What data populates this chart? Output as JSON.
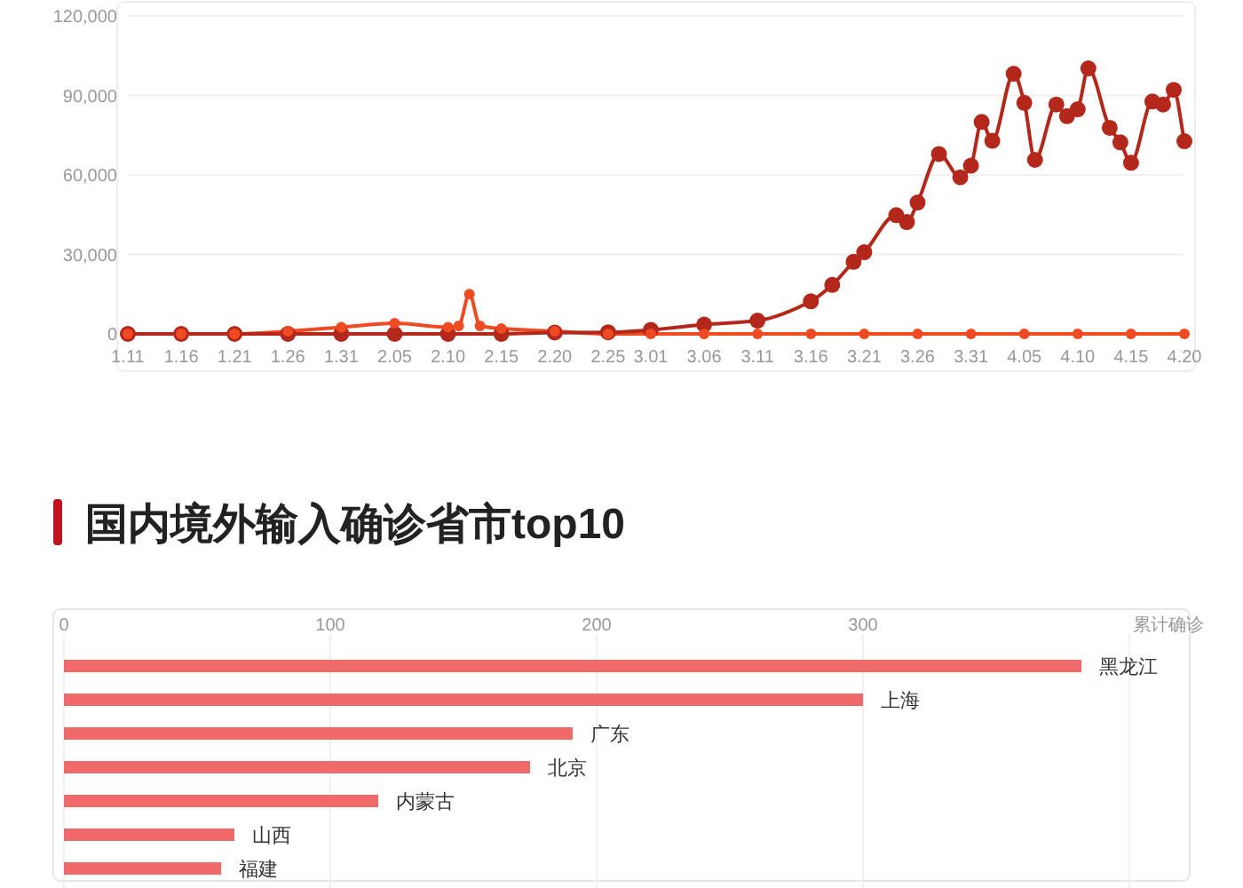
{
  "chart_data": [
    {
      "type": "line",
      "x": [
        "--01-11",
        "--01-16",
        "--01-21",
        "--01-26",
        "--01-31",
        "--02-05",
        "--02-10",
        "--02-15",
        "--02-20",
        "--02-25",
        "--03-01",
        "--03-06",
        "--03-11",
        "--03-16",
        "--03-18",
        "--03-20",
        "--03-21",
        "--03-24",
        "--03-25",
        "--03-26",
        "--03-28",
        "--03-30",
        "--03-31",
        "--04-01",
        "--04-02",
        "--04-04",
        "--04-05",
        "--04-06",
        "--04-08",
        "--04-09",
        "--04-10",
        "--04-11",
        "--04-13",
        "--04-14",
        "--04-15",
        "--04-17",
        "--04-18",
        "--04-19",
        "--04-20"
      ],
      "series": [
        {
          "color": "#b3281a",
          "values": [
            0,
            0,
            0,
            0,
            0,
            0,
            0,
            0,
            500,
            600,
            1500,
            3500,
            5000,
            12300,
            18500,
            27200,
            30800,
            44800,
            42200,
            49600,
            67900,
            59100,
            63500,
            80000,
            72900,
            98200,
            87200,
            65700,
            86600,
            82200,
            84800,
            100200,
            77800,
            72300,
            64600,
            87700,
            86600,
            92100,
            72700
          ]
        },
        {
          "color": "#f04a23",
          "x": [
            "--01-11",
            "--01-16",
            "--01-21",
            "--01-26",
            "--01-31",
            "--02-05",
            "--02-10",
            "--02-11",
            "--02-12",
            "--02-13",
            "--02-15",
            "--02-20",
            "--02-25",
            "--03-01",
            "--03-06",
            "--03-11",
            "--03-16",
            "--03-21",
            "--03-26",
            "--03-31",
            "--04-05",
            "--04-10",
            "--04-15",
            "--04-20"
          ],
          "values": [
            0,
            0,
            0,
            1000,
            2500,
            4000,
            2500,
            3000,
            15000,
            3000,
            2000,
            1000,
            0,
            0,
            0,
            0,
            0,
            0,
            0,
            0,
            0,
            0,
            0,
            0
          ]
        }
      ],
      "xlim": [
        "--01-11",
        "--04-20"
      ],
      "xticks": [
        {
          "value": "--01-11",
          "label": "1.11"
        },
        {
          "value": "--01-16",
          "label": "1.16"
        },
        {
          "value": "--01-21",
          "label": "1.21"
        },
        {
          "value": "--01-26",
          "label": "1.26"
        },
        {
          "value": "--01-31",
          "label": "1.31"
        },
        {
          "value": "--02-05",
          "label": "2.05"
        },
        {
          "value": "--02-10",
          "label": "2.10"
        },
        {
          "value": "--02-15",
          "label": "2.15"
        },
        {
          "value": "--02-20",
          "label": "2.20"
        },
        {
          "value": "--02-25",
          "label": "2.25"
        },
        {
          "value": "--03-01",
          "label": "3.01"
        },
        {
          "value": "--03-06",
          "label": "3.06"
        },
        {
          "value": "--03-11",
          "label": "3.11"
        },
        {
          "value": "--03-16",
          "label": "3.16"
        },
        {
          "value": "--03-21",
          "label": "3.21"
        },
        {
          "value": "--03-26",
          "label": "3.26"
        },
        {
          "value": "--03-31",
          "label": "3.31"
        },
        {
          "value": "--04-05",
          "label": "4.05"
        },
        {
          "value": "--04-10",
          "label": "4.10"
        },
        {
          "value": "--04-15",
          "label": "4.15"
        },
        {
          "value": "--04-20",
          "label": "4.20"
        }
      ],
      "ylim": [
        0,
        120000
      ],
      "yticks": [
        0,
        {
          "value": 30000,
          "label": "30,000"
        },
        {
          "value": 60000,
          "label": "60,000"
        },
        {
          "value": 90000,
          "label": "90,000"
        },
        {
          "value": 120000,
          "label": "120,000"
        }
      ],
      "grid": "y",
      "marker": "circle",
      "line_style": "solid"
    },
    {
      "type": "bar",
      "orientation": "horizontal",
      "title": "国内境外输入确诊省市top10",
      "xlabel": "累计确诊",
      "categories": [
        "黑龙江",
        "上海",
        "广东",
        "北京",
        "内蒙古",
        "山西",
        "福建"
      ],
      "values": [
        382,
        300,
        191,
        175,
        118,
        64,
        59
      ],
      "color": "#f06a6a",
      "xlim": [
        0,
        400
      ],
      "xticks": [
        0,
        100,
        200,
        300
      ],
      "grid": "x",
      "tick_labels": "x"
    }
  ]
}
